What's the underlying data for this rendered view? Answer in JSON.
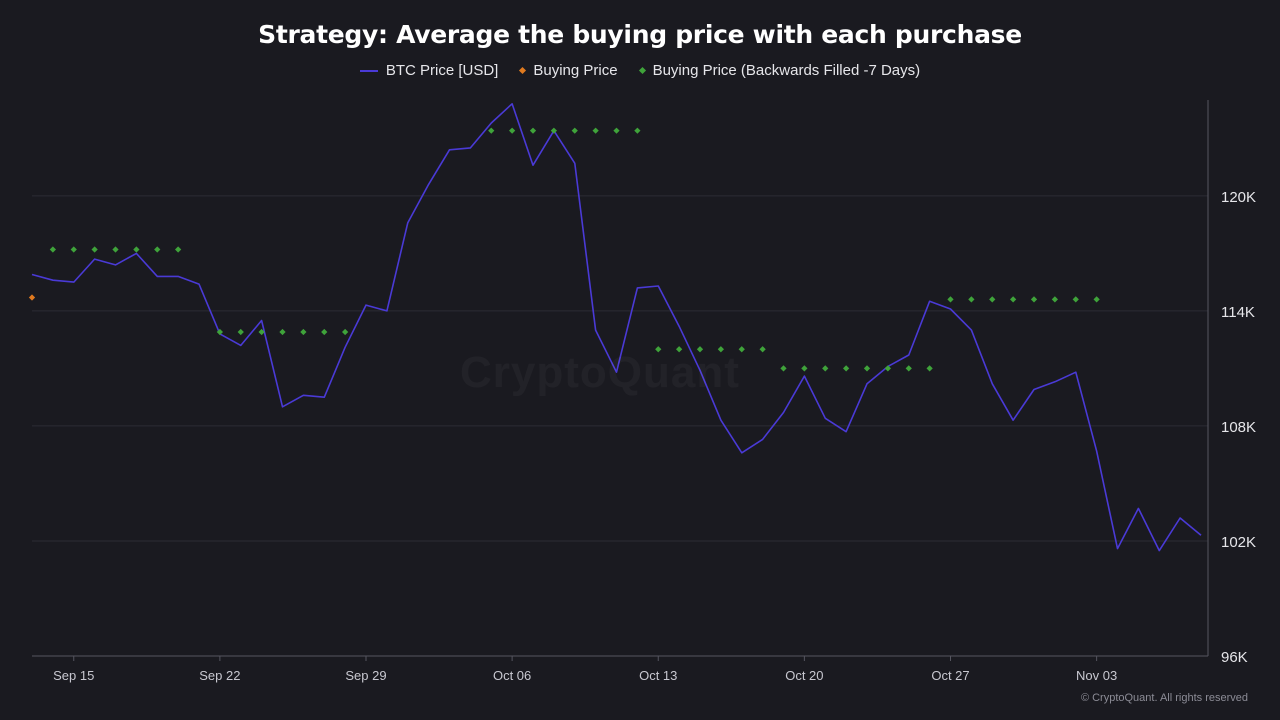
{
  "window": {
    "title": "Strategy: Average the buying price with each purchase"
  },
  "watermark": "CryptoQuant",
  "copyright": "© CryptoQuant. All rights reserved",
  "colors": {
    "background": "#1a1a20",
    "price_line": "#4a3ad6",
    "buying_price": "#e07a1f",
    "backfilled": "#3fa33a",
    "grid": "#2c2c34",
    "axis": "#55555f"
  },
  "chart_data": {
    "type": "line",
    "title": "Strategy: Average the buying price with each purchase",
    "xlabel": "",
    "ylabel": "",
    "x_range": [
      "2025-09-13",
      "2025-11-08"
    ],
    "ylim": [
      96000,
      125000
    ],
    "y_ticks": [
      96000,
      102000,
      108000,
      114000,
      120000
    ],
    "y_tick_labels": [
      "96K",
      "102K",
      "108K",
      "114K",
      "120K"
    ],
    "x_ticks": [
      "2025-09-15",
      "2025-09-22",
      "2025-09-29",
      "2025-10-06",
      "2025-10-13",
      "2025-10-20",
      "2025-10-27",
      "2025-11-03"
    ],
    "x_tick_labels": [
      "Sep 15",
      "Sep 22",
      "Sep 29",
      "Oct 06",
      "Oct 13",
      "Oct 20",
      "Oct 27",
      "Nov 03"
    ],
    "grid": true,
    "legend_position": "top-center",
    "series": [
      {
        "name": "BTC Price [USD]",
        "type": "line",
        "color": "#4a3ad6",
        "points": [
          [
            "2025-09-13",
            115900
          ],
          [
            "2025-09-14",
            115600
          ],
          [
            "2025-09-15",
            115500
          ],
          [
            "2025-09-16",
            116700
          ],
          [
            "2025-09-17",
            116400
          ],
          [
            "2025-09-18",
            117000
          ],
          [
            "2025-09-19",
            115800
          ],
          [
            "2025-09-20",
            115800
          ],
          [
            "2025-09-21",
            115400
          ],
          [
            "2025-09-22",
            112800
          ],
          [
            "2025-09-23",
            112200
          ],
          [
            "2025-09-24",
            113500
          ],
          [
            "2025-09-25",
            109000
          ],
          [
            "2025-09-26",
            109600
          ],
          [
            "2025-09-27",
            109500
          ],
          [
            "2025-09-28",
            112100
          ],
          [
            "2025-09-29",
            114300
          ],
          [
            "2025-09-30",
            114000
          ],
          [
            "2025-10-01",
            118600
          ],
          [
            "2025-10-02",
            120600
          ],
          [
            "2025-10-03",
            122400
          ],
          [
            "2025-10-04",
            122500
          ],
          [
            "2025-10-05",
            123800
          ],
          [
            "2025-10-06",
            124800
          ],
          [
            "2025-10-07",
            121600
          ],
          [
            "2025-10-08",
            123400
          ],
          [
            "2025-10-09",
            121700
          ],
          [
            "2025-10-10",
            113000
          ],
          [
            "2025-10-11",
            110800
          ],
          [
            "2025-10-12",
            115200
          ],
          [
            "2025-10-13",
            115300
          ],
          [
            "2025-10-14",
            113200
          ],
          [
            "2025-10-15",
            110900
          ],
          [
            "2025-10-16",
            108300
          ],
          [
            "2025-10-17",
            106600
          ],
          [
            "2025-10-18",
            107300
          ],
          [
            "2025-10-19",
            108700
          ],
          [
            "2025-10-20",
            110600
          ],
          [
            "2025-10-21",
            108400
          ],
          [
            "2025-10-22",
            107700
          ],
          [
            "2025-10-23",
            110200
          ],
          [
            "2025-10-24",
            111100
          ],
          [
            "2025-10-25",
            111700
          ],
          [
            "2025-10-26",
            114500
          ],
          [
            "2025-10-27",
            114100
          ],
          [
            "2025-10-28",
            113000
          ],
          [
            "2025-10-29",
            110200
          ],
          [
            "2025-10-30",
            108300
          ],
          [
            "2025-10-31",
            109900
          ],
          [
            "2025-11-01",
            110300
          ],
          [
            "2025-11-02",
            110800
          ],
          [
            "2025-11-03",
            106700
          ],
          [
            "2025-11-04",
            101600
          ],
          [
            "2025-11-05",
            103700
          ],
          [
            "2025-11-06",
            101500
          ],
          [
            "2025-11-07",
            103200
          ],
          [
            "2025-11-08",
            102300
          ]
        ]
      },
      {
        "name": "Buying Price",
        "type": "scatter",
        "color": "#e07a1f",
        "points": [
          [
            "2025-09-13",
            114700
          ]
        ]
      },
      {
        "name": "Buying Price (Backwards Filled -7 Days)",
        "type": "scatter",
        "color": "#3fa33a",
        "points": [
          [
            "2025-09-14",
            117200
          ],
          [
            "2025-09-15",
            117200
          ],
          [
            "2025-09-16",
            117200
          ],
          [
            "2025-09-17",
            117200
          ],
          [
            "2025-09-18",
            117200
          ],
          [
            "2025-09-19",
            117200
          ],
          [
            "2025-09-20",
            117200
          ],
          [
            "2025-09-22",
            112900
          ],
          [
            "2025-09-23",
            112900
          ],
          [
            "2025-09-24",
            112900
          ],
          [
            "2025-09-25",
            112900
          ],
          [
            "2025-09-26",
            112900
          ],
          [
            "2025-09-27",
            112900
          ],
          [
            "2025-09-28",
            112900
          ],
          [
            "2025-10-05",
            123400
          ],
          [
            "2025-10-06",
            123400
          ],
          [
            "2025-10-07",
            123400
          ],
          [
            "2025-10-08",
            123400
          ],
          [
            "2025-10-09",
            123400
          ],
          [
            "2025-10-10",
            123400
          ],
          [
            "2025-10-11",
            123400
          ],
          [
            "2025-10-12",
            123400
          ],
          [
            "2025-10-13",
            112000
          ],
          [
            "2025-10-14",
            112000
          ],
          [
            "2025-10-15",
            112000
          ],
          [
            "2025-10-16",
            112000
          ],
          [
            "2025-10-17",
            112000
          ],
          [
            "2025-10-18",
            112000
          ],
          [
            "2025-10-19",
            111000
          ],
          [
            "2025-10-20",
            111000
          ],
          [
            "2025-10-21",
            111000
          ],
          [
            "2025-10-22",
            111000
          ],
          [
            "2025-10-23",
            111000
          ],
          [
            "2025-10-24",
            111000
          ],
          [
            "2025-10-25",
            111000
          ],
          [
            "2025-10-26",
            111000
          ],
          [
            "2025-10-27",
            114600
          ],
          [
            "2025-10-28",
            114600
          ],
          [
            "2025-10-29",
            114600
          ],
          [
            "2025-10-30",
            114600
          ],
          [
            "2025-10-31",
            114600
          ],
          [
            "2025-11-01",
            114600
          ],
          [
            "2025-11-02",
            114600
          ],
          [
            "2025-11-03",
            114600
          ]
        ]
      }
    ]
  }
}
